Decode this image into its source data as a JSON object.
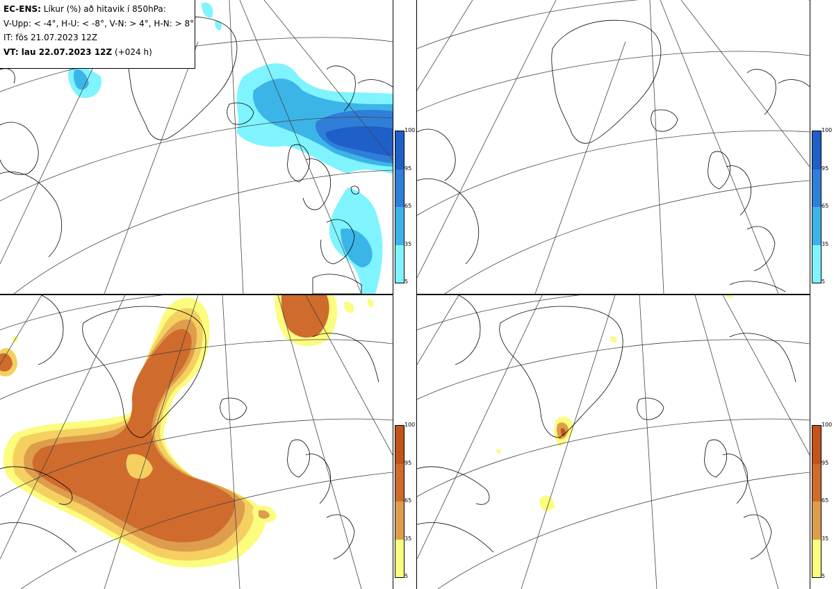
{
  "info": {
    "model": "EC-ENS:",
    "title_rest": "Líkur (%) að hitavik í 850hPa:",
    "line2": "V-Upp: < -4°, H-U: < -8°, V-N: > 4°, H-N: > 8°",
    "line3": "IT: fös 21.07.2023 12Z",
    "vt_bold": "VT: lau 22.07.2023 12Z",
    "vt_rest": "(+024 h)"
  },
  "panels": [
    {
      "id": "V-Upp",
      "meaning": "< -4°",
      "palette": "blue"
    },
    {
      "id": "H-U",
      "meaning": "< -8°",
      "palette": "blue"
    },
    {
      "id": "V-N",
      "meaning": "> 4°",
      "palette": "orange"
    },
    {
      "id": "H-N",
      "meaning": "> 8°",
      "palette": "orange"
    }
  ],
  "colorbar": {
    "levels": [
      "5",
      "35",
      "65",
      "95",
      "100"
    ],
    "blue_colors": [
      "#7ff4ff",
      "#4fe3f4",
      "#3bb5e8",
      "#2f7fd8",
      "#1e5fc8"
    ],
    "orange_colors": [
      "#fcfc7e",
      "#f5d060",
      "#de9d4c",
      "#cf6b2c",
      "#c2531a"
    ]
  }
}
